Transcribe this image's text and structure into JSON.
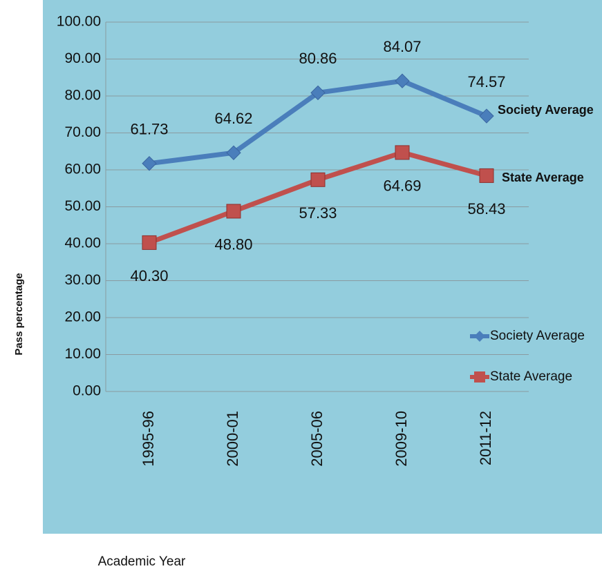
{
  "chart_data": {
    "type": "line",
    "x_label": "Academic Year",
    "y_label": "Pass percentage",
    "categories": [
      "1995-96",
      "2000-01",
      "2005-06",
      "2009-10",
      "2011-12"
    ],
    "series": [
      {
        "name": "Society Average",
        "color": "#4a7ebb",
        "marker": "diamond",
        "values": [
          61.73,
          64.62,
          80.86,
          84.07,
          74.57
        ],
        "value_labels": [
          "61.73",
          "64.62",
          "80.86",
          "84.07",
          "74.57"
        ]
      },
      {
        "name": "State Average",
        "color": "#c0504d",
        "marker": "square",
        "values": [
          40.3,
          48.8,
          57.33,
          64.69,
          58.43
        ],
        "value_labels": [
          "40.30",
          "48.80",
          "57.33",
          "64.69",
          "58.43"
        ]
      }
    ],
    "ylim": [
      0,
      100
    ],
    "yticks": [
      {
        "value": 0,
        "label": "0.00"
      },
      {
        "value": 10,
        "label": "10.00"
      },
      {
        "value": 20,
        "label": "20.00"
      },
      {
        "value": 30,
        "label": "30.00"
      },
      {
        "value": 40,
        "label": "40.00"
      },
      {
        "value": 50,
        "label": "50.00"
      },
      {
        "value": 60,
        "label": "60.00"
      },
      {
        "value": 70,
        "label": "70.00"
      },
      {
        "value": 80,
        "label": "80.00"
      },
      {
        "value": 90,
        "label": "90.00"
      },
      {
        "value": 100,
        "label": "100.00"
      }
    ],
    "grid": true,
    "legend": "lower right"
  }
}
